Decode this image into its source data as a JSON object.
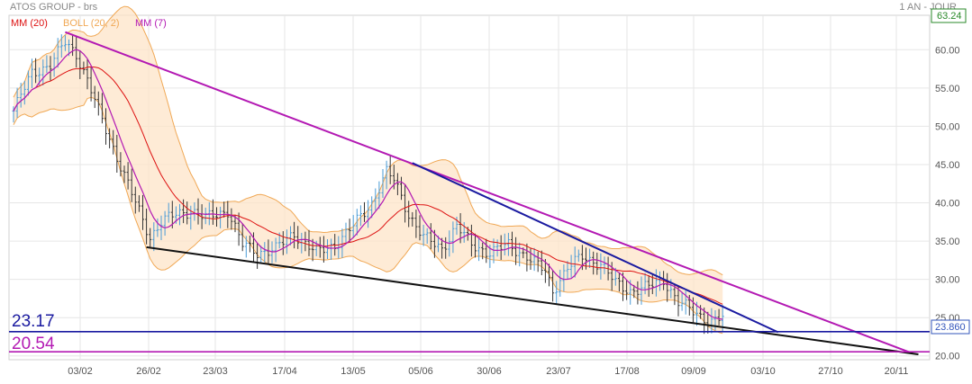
{
  "header": {
    "title": "ATOS GROUP - brs",
    "period": "1 AN - JOUR",
    "legend": [
      {
        "label": "MM (20)",
        "color": "#dd1111"
      },
      {
        "label": "BOLL (20, 2)",
        "color": "#f0a855"
      },
      {
        "label": "MM (7)",
        "color": "#b319b3"
      }
    ]
  },
  "chart_data": {
    "type": "candlestick",
    "x_ticks": [
      "03/02",
      "26/02",
      "23/03",
      "17/04",
      "13/05",
      "05/06",
      "30/06",
      "23/07",
      "17/08",
      "09/09",
      "03/10",
      "27/10",
      "20/11"
    ],
    "y_ticks": [
      "60.00",
      "55.00",
      "50.00",
      "45.00",
      "40.00",
      "35.00",
      "30.00",
      "25.00",
      "20.00"
    ],
    "ylim": [
      19.5,
      64.5
    ],
    "last_price": "63.24",
    "current_value": "23.860",
    "levels": [
      {
        "label": "23.17",
        "value": 23.17,
        "color": "#1a1aa0"
      },
      {
        "label": "20.54",
        "value": 20.54,
        "color": "#b319b3"
      }
    ],
    "close_anchors": [
      {
        "day": 0,
        "value": 52
      },
      {
        "day": 5,
        "value": 57
      },
      {
        "day": 10,
        "value": 58
      },
      {
        "day": 14,
        "value": 61
      },
      {
        "day": 17,
        "value": 59.5
      },
      {
        "day": 20,
        "value": 56
      },
      {
        "day": 23,
        "value": 52
      },
      {
        "day": 28,
        "value": 46
      },
      {
        "day": 33,
        "value": 40
      },
      {
        "day": 37,
        "value": 35.5
      },
      {
        "day": 40,
        "value": 37.5
      },
      {
        "day": 44,
        "value": 38.5
      },
      {
        "day": 48,
        "value": 39
      },
      {
        "day": 52,
        "value": 38
      },
      {
        "day": 58,
        "value": 39
      },
      {
        "day": 62,
        "value": 34.5
      },
      {
        "day": 66,
        "value": 33.5
      },
      {
        "day": 71,
        "value": 34
      },
      {
        "day": 76,
        "value": 36
      },
      {
        "day": 82,
        "value": 33.5
      },
      {
        "day": 87,
        "value": 34.5
      },
      {
        "day": 92,
        "value": 37
      },
      {
        "day": 97,
        "value": 40
      },
      {
        "day": 101,
        "value": 44
      },
      {
        "day": 103,
        "value": 43
      },
      {
        "day": 107,
        "value": 38.5
      },
      {
        "day": 111,
        "value": 35.5
      },
      {
        "day": 116,
        "value": 34
      },
      {
        "day": 120,
        "value": 37
      },
      {
        "day": 124,
        "value": 34.5
      },
      {
        "day": 129,
        "value": 33.5
      },
      {
        "day": 134,
        "value": 34.5
      },
      {
        "day": 139,
        "value": 33
      },
      {
        "day": 144,
        "value": 31
      },
      {
        "day": 146,
        "value": 28.5
      },
      {
        "day": 150,
        "value": 31.5
      },
      {
        "day": 154,
        "value": 33
      },
      {
        "day": 159,
        "value": 32
      },
      {
        "day": 163,
        "value": 29.5
      },
      {
        "day": 167,
        "value": 28.5
      },
      {
        "day": 172,
        "value": 29
      },
      {
        "day": 176,
        "value": 30
      },
      {
        "day": 180,
        "value": 27
      },
      {
        "day": 185,
        "value": 25.5
      },
      {
        "day": 189,
        "value": 24.5
      },
      {
        "day": 192,
        "value": 25
      }
    ],
    "trendlines": [
      {
        "name": "resistance-trendline",
        "color": "#b319b3",
        "from": {
          "day": 14,
          "value": 62.3
        },
        "to": {
          "day": 243,
          "value": 20.4
        }
      },
      {
        "name": "short-resistance-trendline",
        "color": "#1a1aa0",
        "from": {
          "day": 108,
          "value": 45.2
        },
        "to": {
          "day": 207,
          "value": 23.1
        }
      },
      {
        "name": "support-trendline",
        "color": "#111111",
        "from": {
          "day": 36,
          "value": 34.2
        },
        "to": {
          "day": 245,
          "value": 20.2
        }
      }
    ]
  }
}
